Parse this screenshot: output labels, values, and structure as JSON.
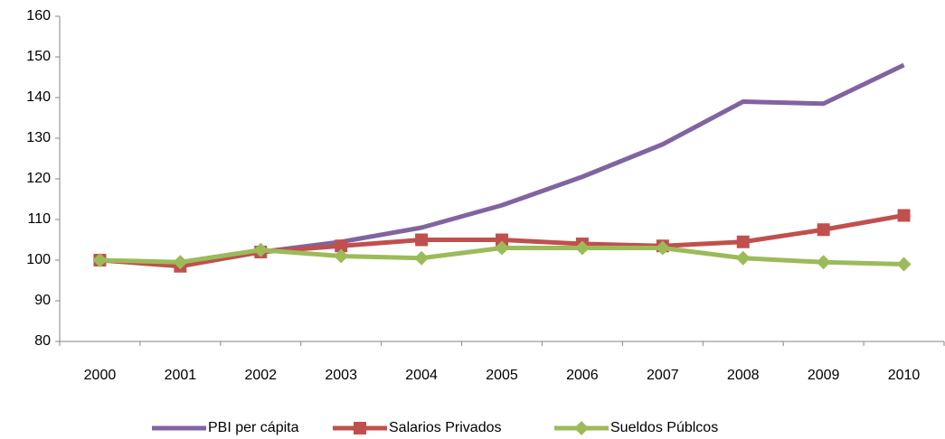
{
  "chart_data": {
    "type": "line",
    "categories": [
      "2000",
      "2001",
      "2002",
      "2003",
      "2004",
      "2005",
      "2006",
      "2007",
      "2008",
      "2009",
      "2010"
    ],
    "series": [
      {
        "name": "PBI per cápita",
        "color": "#8064a2",
        "marker": "none",
        "values": [
          100,
          99,
          102,
          104.5,
          108,
          113.5,
          120.5,
          128.5,
          139,
          138.5,
          148
        ]
      },
      {
        "name": "Salarios Privados",
        "color": "#c0504d",
        "marker": "square",
        "values": [
          100,
          98.5,
          102,
          103.5,
          105,
          105,
          104,
          103.5,
          104.5,
          107.5,
          111
        ]
      },
      {
        "name": "Sueldos Públcos",
        "color": "#9bbb59",
        "marker": "diamond",
        "values": [
          100,
          99.5,
          102.5,
          101,
          100.5,
          103,
          103,
          103,
          100.5,
          99.5,
          99
        ]
      }
    ],
    "ylim": [
      80,
      160
    ],
    "yticks": [
      80,
      90,
      100,
      110,
      120,
      130,
      140,
      150,
      160
    ],
    "grid": false,
    "legend": "bottom"
  }
}
